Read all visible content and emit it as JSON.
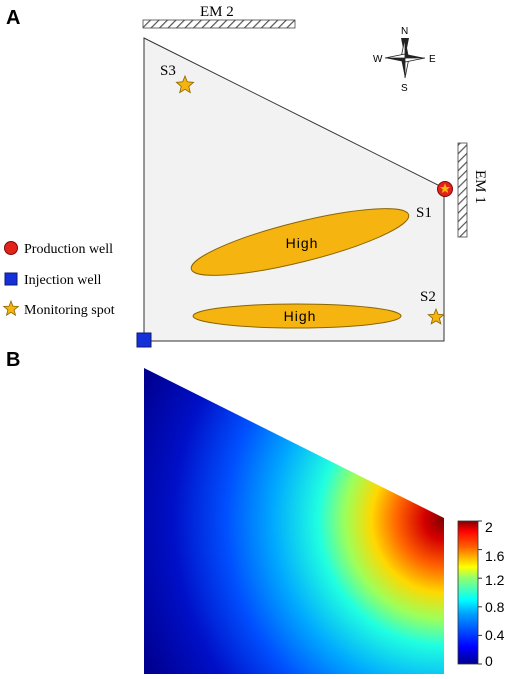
{
  "panel_a": {
    "label": "A",
    "em_top": "EM 2",
    "em_right": "EM 1",
    "compass": {
      "n": "N",
      "s": "S",
      "e": "E",
      "w": "W"
    },
    "spots": {
      "s1": "S1",
      "s2": "S2",
      "s3": "S3"
    },
    "zones": [
      "High",
      "High"
    ],
    "legend": {
      "production": "Production well",
      "injection": "Injection well",
      "monitoring": "Monitoring spot"
    },
    "colors": {
      "domain_fill": "#f2f2f2",
      "zone_fill": "#f5b40f",
      "production_well": "#e3221c",
      "injection_well": "#1430d8",
      "monitoring_star": "#f5b40f"
    }
  },
  "panel_b": {
    "label": "B",
    "colorbar_ticks": [
      "2",
      "1.6",
      "1.2",
      "0.8",
      "0.4",
      "0"
    ],
    "colorbar_range": [
      0,
      2
    ],
    "colormap": "jet"
  }
}
